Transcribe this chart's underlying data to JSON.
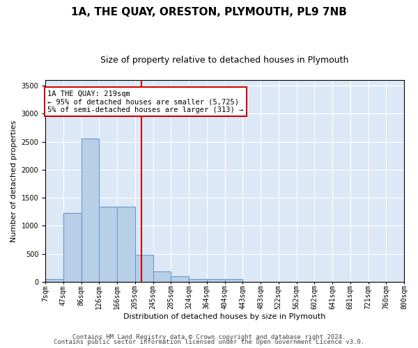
{
  "title": "1A, THE QUAY, ORESTON, PLYMOUTH, PL9 7NB",
  "subtitle": "Size of property relative to detached houses in Plymouth",
  "xlabel": "Distribution of detached houses by size in Plymouth",
  "ylabel": "Number of detached properties",
  "bar_values": [
    50,
    1230,
    2560,
    1340,
    1340,
    490,
    190,
    105,
    55,
    50,
    45,
    0,
    0,
    0,
    0,
    0,
    0,
    0,
    0,
    0
  ],
  "bin_labels": [
    "7sqm",
    "47sqm",
    "86sqm",
    "126sqm",
    "166sqm",
    "205sqm",
    "245sqm",
    "285sqm",
    "324sqm",
    "364sqm",
    "404sqm",
    "443sqm",
    "483sqm",
    "522sqm",
    "562sqm",
    "602sqm",
    "641sqm",
    "681sqm",
    "721sqm",
    "760sqm",
    "800sqm"
  ],
  "bar_color": "#b8cfe8",
  "bar_edgecolor": "#6699cc",
  "bar_linewidth": 0.8,
  "vline_color": "#cc0000",
  "vline_linewidth": 1.5,
  "annotation_text": "1A THE QUAY: 219sqm\n← 95% of detached houses are smaller (5,725)\n5% of semi-detached houses are larger (313) →",
  "annotation_boxcolor": "white",
  "annotation_edgecolor": "#cc0000",
  "ylim": [
    0,
    3600
  ],
  "yticks": [
    0,
    500,
    1000,
    1500,
    2000,
    2500,
    3000,
    3500
  ],
  "footer_line1": "Contains HM Land Registry data © Crown copyright and database right 2024.",
  "footer_line2": "Contains public sector information licensed under the Open Government Licence v3.0.",
  "bg_color": "#dce8f5",
  "fig_bg_color": "#ffffff",
  "title_fontsize": 11,
  "subtitle_fontsize": 9,
  "ylabel_fontsize": 8,
  "xlabel_fontsize": 8,
  "footer_fontsize": 6.5,
  "tick_fontsize": 7
}
